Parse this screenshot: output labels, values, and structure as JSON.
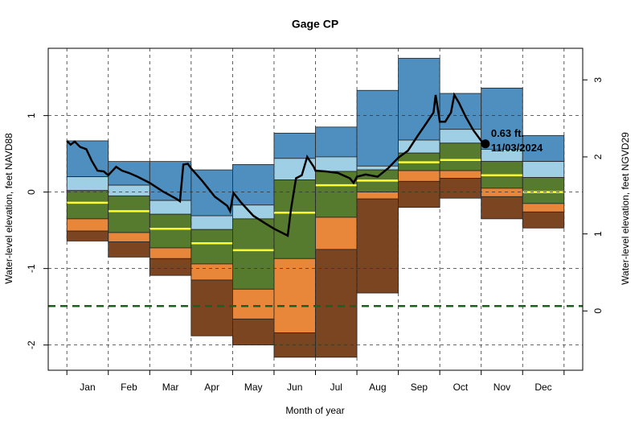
{
  "chart_data": {
    "type": "percentile-band",
    "title": "Gage CP",
    "x_label": "Month of year",
    "y_label": "Water-level elevation, feet NAVD88",
    "y2_label": "Water-level elevation, feet NGVD29",
    "categories": [
      "Jan",
      "Feb",
      "Mar",
      "Apr",
      "May",
      "Jun",
      "Jul",
      "Aug",
      "Sep",
      "Oct",
      "Nov",
      "Dec"
    ],
    "xlim": [
      -0.45,
      12.45
    ],
    "ylim": [
      -2.33,
      1.88
    ],
    "yticks": [
      -2,
      -1,
      0,
      1
    ],
    "y2lim": [
      -0.77,
      3.41
    ],
    "y2ticks": [
      0,
      1,
      2,
      3
    ],
    "grid": true,
    "levels": [
      [
        0.67,
        0.4,
        0.4,
        0.29,
        0.36,
        0.77,
        0.85,
        1.33,
        1.75,
        1.29,
        1.36,
        0.74
      ],
      [
        0.2,
        0.09,
        -0.11,
        -0.31,
        -0.17,
        0.44,
        0.46,
        0.34,
        0.68,
        0.82,
        0.56,
        0.4
      ],
      [
        0.02,
        -0.05,
        -0.29,
        -0.49,
        -0.35,
        0.16,
        0.27,
        0.29,
        0.51,
        0.64,
        0.4,
        0.19
      ],
      [
        -0.35,
        -0.53,
        -0.73,
        -0.94,
        -1.27,
        -0.87,
        -0.33,
        0.0,
        0.28,
        0.28,
        0.05,
        -0.15
      ],
      [
        -0.51,
        -0.65,
        -0.87,
        -1.15,
        -1.66,
        -1.84,
        -0.75,
        -0.09,
        0.14,
        0.18,
        -0.06,
        -0.26
      ],
      [
        -0.64,
        -0.85,
        -1.09,
        -1.88,
        -2.0,
        -2.16,
        -2.16,
        -1.32,
        -0.2,
        -0.08,
        -0.35,
        -0.47
      ]
    ],
    "band_colors": [
      "#4f8fc0",
      "#9fcfe4",
      "#567a2e",
      "#e8873a",
      "#7a4520"
    ],
    "median": {
      "color": "#ffff33",
      "values": [
        -0.14,
        -0.25,
        -0.48,
        -0.67,
        -0.76,
        -0.27,
        0.09,
        0.15,
        0.39,
        0.42,
        0.22,
        0.0
      ]
    },
    "reference_line": {
      "value": -1.49,
      "color": "#1e5e1e"
    },
    "line": {
      "color": "#000000",
      "x": [
        0,
        0.09,
        0.19,
        0.32,
        0.47,
        0.6,
        0.74,
        0.89,
        1,
        1.19,
        1.33,
        1.5,
        1.71,
        2,
        2.31,
        2.65,
        2.73,
        2.81,
        2.92,
        3,
        3.26,
        3.57,
        3.87,
        3.94,
        4.02,
        4.21,
        4.5,
        4.79,
        5,
        5.22,
        5.33,
        5.41,
        5.53,
        5.67,
        5.8,
        5.96,
        6,
        6.25,
        6.54,
        6.83,
        6.92,
        7,
        7.21,
        7.5,
        7.75,
        8,
        8.23,
        8.46,
        8.65,
        8.85,
        8.9,
        9,
        9.13,
        9.27,
        9.35,
        9.46,
        9.62,
        9.81,
        10,
        10.1
      ],
      "values": [
        0.67,
        0.62,
        0.66,
        0.59,
        0.56,
        0.41,
        0.28,
        0.27,
        0.22,
        0.33,
        0.28,
        0.25,
        0.2,
        0.12,
        0.01,
        -0.09,
        -0.12,
        0.36,
        0.37,
        0.31,
        0.15,
        -0.06,
        -0.18,
        -0.25,
        -0.01,
        -0.14,
        -0.31,
        -0.41,
        -0.48,
        -0.54,
        -0.57,
        -0.22,
        0.18,
        0.22,
        0.46,
        0.33,
        0.28,
        0.27,
        0.25,
        0.18,
        0.12,
        0.2,
        0.23,
        0.2,
        0.31,
        0.45,
        0.54,
        0.73,
        0.88,
        1.04,
        1.27,
        0.92,
        0.92,
        1.04,
        1.27,
        1.17,
        0.99,
        0.81,
        0.67,
        0.63
      ]
    },
    "last_point": {
      "x": 10.1,
      "value": 0.63,
      "value_label": "0.63 ft.",
      "date": "11/03/2024"
    }
  }
}
